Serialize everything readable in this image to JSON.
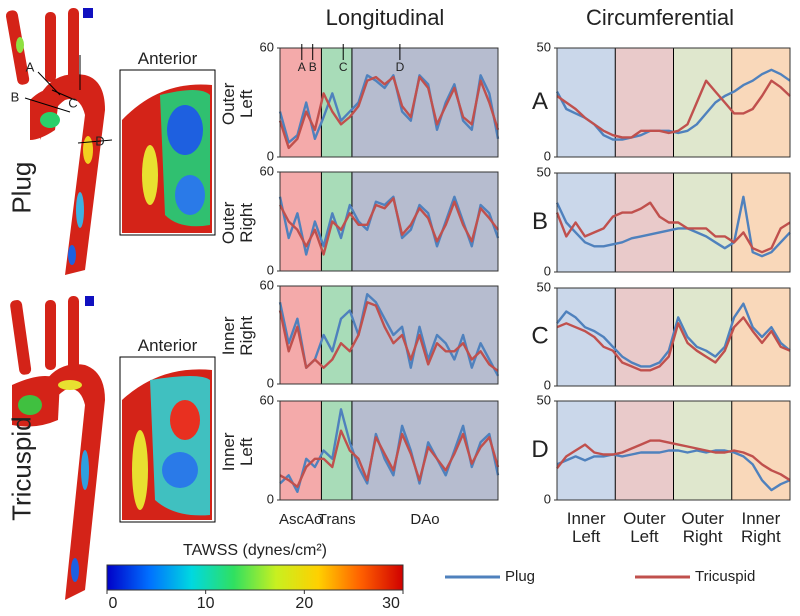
{
  "figure": {
    "column_titles": [
      "Longitudinal",
      "Circumferential"
    ],
    "row_labels": [
      "Plug",
      "Tricuspid"
    ],
    "view_labels": [
      "Anterior",
      "Anterior"
    ],
    "point_labels": [
      "A",
      "B",
      "C",
      "D"
    ]
  },
  "longitudinal_axis": {
    "regions": [
      {
        "label": "AscAo",
        "start": 0,
        "end": 19,
        "color": "#f4aaaa"
      },
      {
        "label": "Trans",
        "start": 19,
        "end": 33,
        "color": "#a8dcb8"
      },
      {
        "label": "DAo",
        "start": 33,
        "end": 100,
        "color": "#b6bccf"
      }
    ],
    "markers": [
      {
        "label": "A",
        "x": 10
      },
      {
        "label": "B",
        "x": 15
      },
      {
        "label": "C",
        "x": 29
      },
      {
        "label": "D",
        "x": 55
      }
    ]
  },
  "circumferential_axis": {
    "regions": [
      {
        "label": "Inner Left",
        "start": 0,
        "end": 25,
        "color": "#cad7ea"
      },
      {
        "label": "Outer Left",
        "start": 25,
        "end": 50,
        "color": "#e9caca"
      },
      {
        "label": "Outer Right",
        "start": 50,
        "end": 75,
        "color": "#dfe7cd"
      },
      {
        "label": "Inner Right",
        "start": 75,
        "end": 100,
        "color": "#f9d8ba"
      }
    ]
  },
  "colorbar": {
    "title": "TAWSS (dynes/cm²)",
    "lim": [
      0,
      30
    ],
    "ticks": [
      0,
      10,
      20,
      30
    ],
    "colormap": [
      "#0000c8",
      "#0070ff",
      "#00d8e0",
      "#30e060",
      "#c8f020",
      "#ffd000",
      "#ff6000",
      "#d00000"
    ]
  },
  "chart_data": [
    {
      "type": "line",
      "ylabel": "Outer Left",
      "xlim": [
        0,
        100
      ],
      "ylim": [
        0,
        60
      ],
      "yticks": [
        0,
        60
      ],
      "x": [
        0,
        4,
        8,
        12,
        16,
        20,
        24,
        28,
        32,
        36,
        40,
        44,
        48,
        52,
        56,
        60,
        64,
        68,
        72,
        76,
        80,
        84,
        88,
        92,
        96,
        100
      ],
      "series": [
        {
          "name": "Plug",
          "color": "#4f81bd",
          "values": [
            25,
            8,
            12,
            30,
            10,
            22,
            35,
            20,
            25,
            30,
            45,
            42,
            38,
            45,
            25,
            20,
            45,
            40,
            15,
            30,
            40,
            20,
            15,
            45,
            35,
            10
          ]
        },
        {
          "name": "Tricuspid",
          "color": "#c0504d",
          "values": [
            20,
            5,
            10,
            25,
            15,
            35,
            25,
            18,
            22,
            28,
            42,
            44,
            40,
            44,
            28,
            22,
            44,
            38,
            18,
            28,
            38,
            22,
            18,
            42,
            30,
            15
          ]
        }
      ]
    },
    {
      "type": "line",
      "ylabel": "Outer Right",
      "xlim": [
        0,
        100
      ],
      "ylim": [
        0,
        60
      ],
      "yticks": [
        0,
        60
      ],
      "x": [
        0,
        4,
        8,
        12,
        16,
        20,
        24,
        28,
        32,
        36,
        40,
        44,
        48,
        52,
        56,
        60,
        64,
        68,
        72,
        76,
        80,
        84,
        88,
        92,
        96,
        100
      ],
      "series": [
        {
          "name": "Plug",
          "color": "#4f81bd",
          "values": [
            45,
            20,
            35,
            10,
            30,
            15,
            35,
            20,
            40,
            30,
            25,
            42,
            40,
            45,
            20,
            25,
            40,
            35,
            15,
            30,
            45,
            30,
            15,
            40,
            35,
            20
          ]
        },
        {
          "name": "Tricuspid",
          "color": "#c0504d",
          "values": [
            40,
            30,
            25,
            15,
            25,
            10,
            30,
            25,
            35,
            28,
            28,
            40,
            38,
            44,
            22,
            28,
            38,
            32,
            18,
            28,
            42,
            28,
            18,
            38,
            32,
            25
          ]
        }
      ]
    },
    {
      "type": "line",
      "ylabel": "Inner Right",
      "xlim": [
        0,
        100
      ],
      "ylim": [
        0,
        60
      ],
      "yticks": [
        0,
        60
      ],
      "x": [
        0,
        4,
        8,
        12,
        16,
        20,
        24,
        28,
        32,
        36,
        40,
        44,
        48,
        52,
        56,
        60,
        64,
        68,
        72,
        76,
        80,
        84,
        88,
        92,
        96,
        100
      ],
      "series": [
        {
          "name": "Plug",
          "color": "#4f81bd",
          "values": [
            50,
            25,
            40,
            10,
            15,
            30,
            20,
            40,
            45,
            30,
            55,
            50,
            40,
            30,
            35,
            10,
            35,
            15,
            30,
            25,
            15,
            30,
            10,
            25,
            15,
            5
          ]
        },
        {
          "name": "Tricuspid",
          "color": "#c0504d",
          "values": [
            45,
            20,
            35,
            10,
            15,
            10,
            15,
            25,
            20,
            30,
            50,
            48,
            35,
            25,
            30,
            15,
            30,
            12,
            25,
            20,
            20,
            25,
            15,
            20,
            12,
            8
          ]
        }
      ]
    },
    {
      "type": "line",
      "ylabel": "Inner Left",
      "xlim": [
        0,
        100
      ],
      "ylim": [
        0,
        60
      ],
      "yticks": [
        0,
        60
      ],
      "x": [
        0,
        4,
        8,
        12,
        16,
        20,
        24,
        28,
        32,
        36,
        40,
        44,
        48,
        52,
        56,
        60,
        64,
        68,
        72,
        76,
        80,
        84,
        88,
        92,
        96,
        100
      ],
      "series": [
        {
          "name": "Plug",
          "color": "#4f81bd",
          "values": [
            10,
            15,
            5,
            25,
            20,
            30,
            25,
            55,
            35,
            20,
            10,
            40,
            25,
            15,
            45,
            30,
            10,
            35,
            25,
            15,
            30,
            45,
            20,
            35,
            40,
            15
          ]
        },
        {
          "name": "Tricuspid",
          "color": "#c0504d",
          "values": [
            15,
            12,
            8,
            20,
            25,
            25,
            20,
            42,
            30,
            25,
            12,
            38,
            28,
            18,
            40,
            28,
            12,
            32,
            25,
            18,
            28,
            40,
            22,
            32,
            38,
            20
          ]
        }
      ]
    },
    {
      "type": "line",
      "ylabel": "A",
      "xlim": [
        0,
        100
      ],
      "ylim": [
        0,
        50
      ],
      "yticks": [
        0,
        50
      ],
      "x": [
        0,
        4,
        8,
        12,
        16,
        20,
        24,
        28,
        32,
        36,
        40,
        44,
        48,
        52,
        56,
        60,
        64,
        68,
        72,
        76,
        80,
        84,
        88,
        92,
        96,
        100
      ],
      "series": [
        {
          "name": "Plug",
          "color": "#4f81bd",
          "values": [
            30,
            22,
            20,
            18,
            15,
            10,
            8,
            8,
            9,
            10,
            12,
            12,
            12,
            11,
            12,
            15,
            20,
            25,
            28,
            30,
            33,
            35,
            38,
            40,
            38,
            35
          ]
        },
        {
          "name": "Tricuspid",
          "color": "#c0504d",
          "values": [
            28,
            25,
            22,
            18,
            15,
            12,
            10,
            9,
            9,
            12,
            12,
            12,
            11,
            12,
            15,
            25,
            35,
            30,
            25,
            20,
            20,
            22,
            28,
            35,
            32,
            28
          ]
        }
      ]
    },
    {
      "type": "line",
      "ylabel": "B",
      "xlim": [
        0,
        100
      ],
      "ylim": [
        0,
        50
      ],
      "yticks": [
        0,
        50
      ],
      "x": [
        0,
        4,
        8,
        12,
        16,
        20,
        24,
        28,
        32,
        36,
        40,
        44,
        48,
        52,
        56,
        60,
        64,
        68,
        72,
        76,
        80,
        84,
        88,
        92,
        96,
        100
      ],
      "series": [
        {
          "name": "Plug",
          "color": "#4f81bd",
          "values": [
            35,
            25,
            20,
            15,
            13,
            13,
            14,
            15,
            17,
            18,
            19,
            20,
            21,
            22,
            22,
            20,
            18,
            15,
            12,
            15,
            38,
            10,
            8,
            10,
            15,
            20
          ]
        },
        {
          "name": "Tricuspid",
          "color": "#c0504d",
          "values": [
            30,
            18,
            25,
            18,
            20,
            22,
            28,
            30,
            30,
            32,
            35,
            28,
            25,
            25,
            22,
            22,
            22,
            18,
            18,
            15,
            20,
            12,
            10,
            12,
            22,
            25
          ]
        }
      ]
    },
    {
      "type": "line",
      "ylabel": "C",
      "xlim": [
        0,
        100
      ],
      "ylim": [
        0,
        50
      ],
      "yticks": [
        0,
        50
      ],
      "x": [
        0,
        4,
        8,
        12,
        16,
        20,
        24,
        28,
        32,
        36,
        40,
        44,
        48,
        52,
        56,
        60,
        64,
        68,
        72,
        76,
        80,
        84,
        88,
        92,
        96,
        100
      ],
      "series": [
        {
          "name": "Plug",
          "color": "#4f81bd",
          "values": [
            32,
            38,
            35,
            30,
            28,
            25,
            20,
            15,
            12,
            10,
            10,
            12,
            18,
            35,
            25,
            20,
            18,
            15,
            20,
            35,
            42,
            30,
            25,
            30,
            22,
            18
          ]
        },
        {
          "name": "Tricuspid",
          "color": "#c0504d",
          "values": [
            30,
            32,
            30,
            28,
            25,
            20,
            18,
            12,
            10,
            8,
            8,
            10,
            15,
            32,
            22,
            18,
            15,
            12,
            18,
            30,
            35,
            28,
            22,
            28,
            20,
            18
          ]
        }
      ]
    },
    {
      "type": "line",
      "ylabel": "D",
      "xlim": [
        0,
        100
      ],
      "ylim": [
        0,
        50
      ],
      "yticks": [
        0,
        50
      ],
      "x": [
        0,
        4,
        8,
        12,
        16,
        20,
        24,
        28,
        32,
        36,
        40,
        44,
        48,
        52,
        56,
        60,
        64,
        68,
        72,
        76,
        80,
        84,
        88,
        92,
        96,
        100
      ],
      "series": [
        {
          "name": "Plug",
          "color": "#4f81bd",
          "values": [
            18,
            20,
            22,
            20,
            22,
            22,
            23,
            22,
            23,
            24,
            24,
            24,
            25,
            25,
            24,
            25,
            24,
            25,
            25,
            24,
            22,
            18,
            10,
            5,
            8,
            10
          ]
        },
        {
          "name": "Tricuspid",
          "color": "#c0504d",
          "values": [
            16,
            22,
            25,
            28,
            24,
            23,
            23,
            24,
            26,
            28,
            30,
            30,
            29,
            28,
            27,
            26,
            25,
            24,
            24,
            25,
            24,
            22,
            18,
            15,
            13,
            10
          ]
        }
      ]
    }
  ]
}
